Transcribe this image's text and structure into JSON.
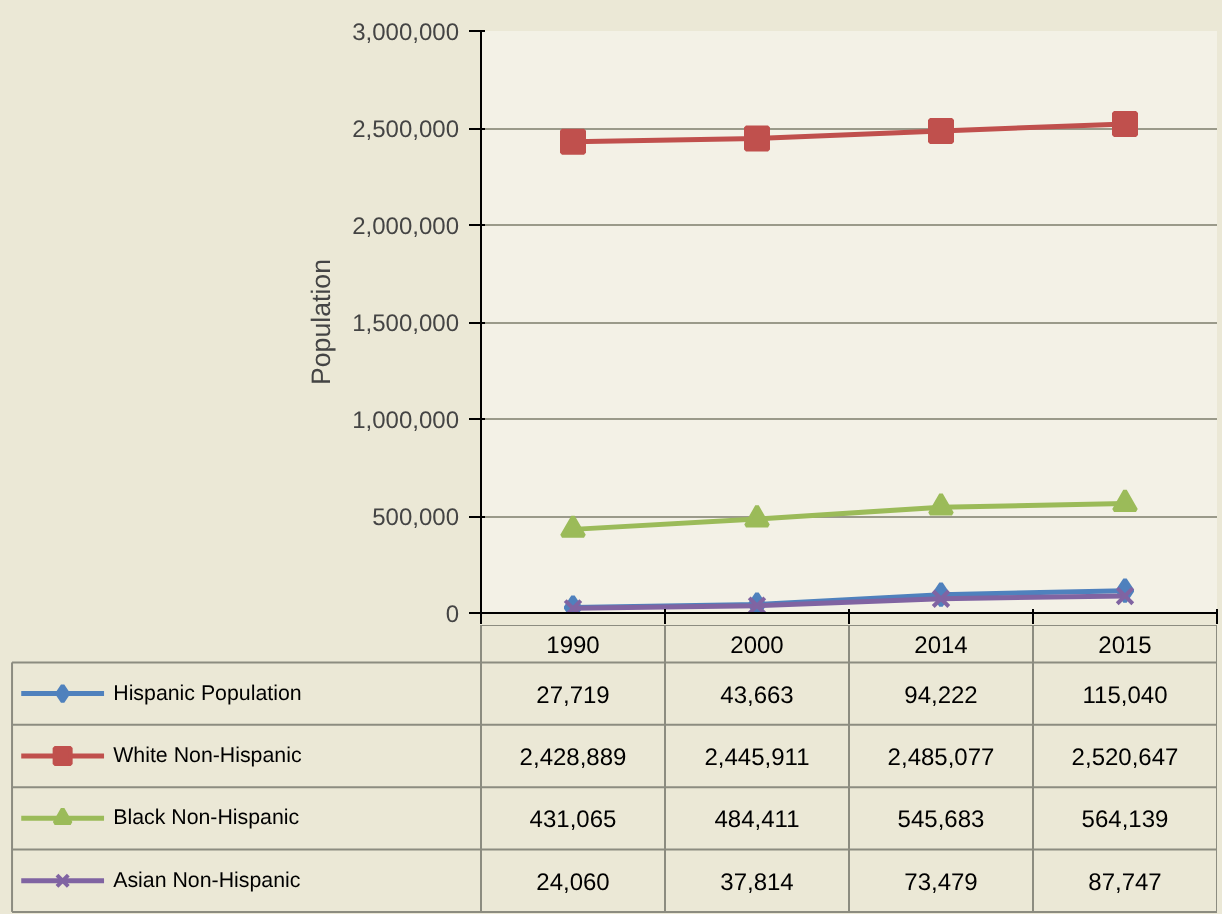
{
  "chart_data": {
    "type": "line",
    "ylabel": "Population",
    "categories": [
      "1990",
      "2000",
      "2014",
      "2015"
    ],
    "series": [
      {
        "name": "Hispanic Population",
        "color": "#4f81bd",
        "marker": "diamond",
        "values": [
          27719,
          43663,
          94222,
          115040
        ],
        "value_labels": [
          "27,719",
          "43,663",
          "94,222",
          "115,040"
        ]
      },
      {
        "name": "White Non-Hispanic",
        "color": "#c0504d",
        "marker": "square",
        "values": [
          2428889,
          2445911,
          2485077,
          2520647
        ],
        "value_labels": [
          "2,428,889",
          "2,445,911",
          "2,485,077",
          "2,520,647"
        ]
      },
      {
        "name": "Black Non-Hispanic",
        "color": "#9bbb59",
        "marker": "triangle",
        "values": [
          431065,
          484411,
          545683,
          564139
        ],
        "value_labels": [
          "431,065",
          "484,411",
          "545,683",
          "564,139"
        ]
      },
      {
        "name": "Asian Non-Hispanic",
        "color": "#8064a2",
        "marker": "cross",
        "values": [
          24060,
          37814,
          73479,
          87747
        ],
        "value_labels": [
          "24,060",
          "37,814",
          "73,479",
          "87,747"
        ]
      }
    ],
    "ylim": [
      0,
      3000000
    ],
    "yticks": [
      {
        "value": 0,
        "label": "0"
      },
      {
        "value": 500000,
        "label": "500,000"
      },
      {
        "value": 1000000,
        "label": "1,000,000"
      },
      {
        "value": 1500000,
        "label": "1,500,000"
      },
      {
        "value": 2000000,
        "label": "2,000,000"
      },
      {
        "value": 2500000,
        "label": "2,500,000"
      },
      {
        "value": 3000000,
        "label": "3,000,000"
      }
    ],
    "grid": "y",
    "legend": "bottom",
    "line_style": "solid"
  }
}
